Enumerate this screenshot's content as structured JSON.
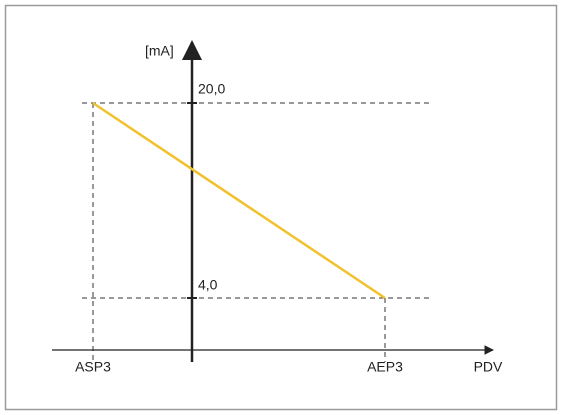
{
  "axes": {
    "y_label": "[mA]",
    "x_label": "PDV"
  },
  "levels": {
    "upper": "20,0",
    "lower": "4,0"
  },
  "points": {
    "start": "ASP3",
    "end": "AEP3"
  }
}
